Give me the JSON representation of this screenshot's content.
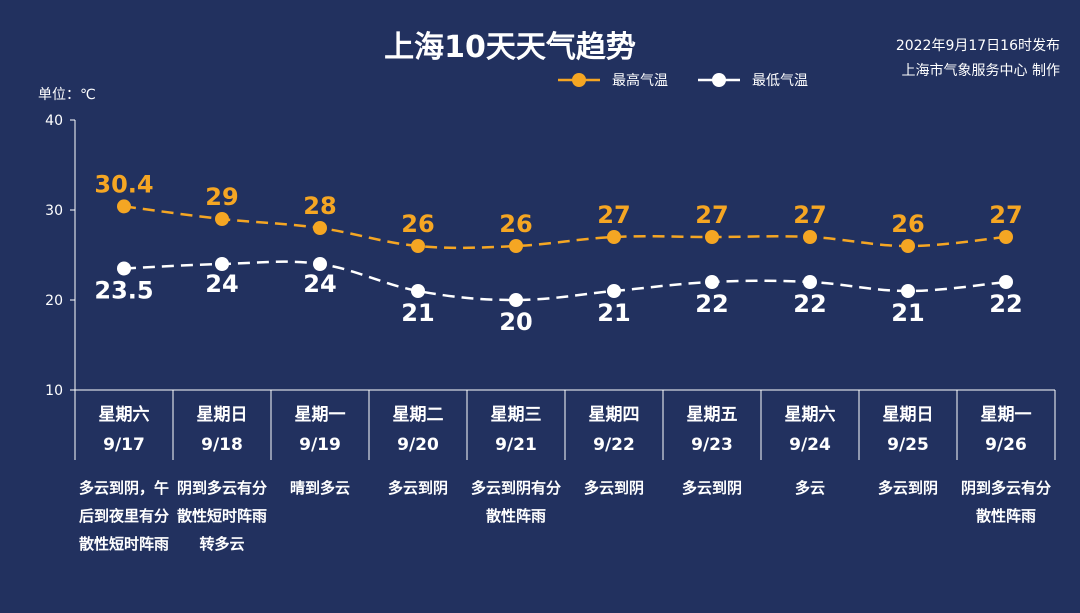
{
  "header": {
    "issued_line1": "2022年9月17日16时发布",
    "issued_line2": "上海市气象服务中心 制作"
  },
  "colors": {
    "background": "#22315f",
    "high": "#f5a623",
    "low": "#ffffff",
    "axis": "#ffffff"
  },
  "chart_data": {
    "type": "line",
    "title": "上海10天天气趋势",
    "ylabel": "单位：℃",
    "ylim": [
      10,
      40
    ],
    "yticks": [
      10,
      20,
      30,
      40
    ],
    "legend_position": "top-right",
    "categories": [
      "9/17",
      "9/18",
      "9/19",
      "9/20",
      "9/21",
      "9/22",
      "9/23",
      "9/24",
      "9/25",
      "9/26"
    ],
    "weekdays": [
      "星期六",
      "星期日",
      "星期一",
      "星期二",
      "星期三",
      "星期四",
      "星期五",
      "星期六",
      "星期日",
      "星期一"
    ],
    "descriptions": [
      "多云到阴，午后到夜里有分散性短时阵雨",
      "阴到多云有分散性短时阵雨转多云",
      "晴到多云",
      "多云到阴",
      "多云到阴有分散性阵雨",
      "多云到阴",
      "多云到阴",
      "多云",
      "多云到阴",
      "阴到多云有分散性阵雨"
    ],
    "series": [
      {
        "name": "最高气温",
        "values": [
          30.4,
          29,
          28,
          26,
          26,
          27,
          27,
          27,
          26,
          27
        ],
        "labels": [
          "30.4",
          "29",
          "28",
          "26",
          "26",
          "27",
          "27",
          "27",
          "26",
          "27"
        ]
      },
      {
        "name": "最低气温",
        "values": [
          23.5,
          24,
          24,
          21,
          20,
          21,
          22,
          22,
          21,
          22
        ],
        "labels": [
          "23.5",
          "24",
          "24",
          "21",
          "20",
          "21",
          "22",
          "22",
          "21",
          "22"
        ]
      }
    ]
  }
}
